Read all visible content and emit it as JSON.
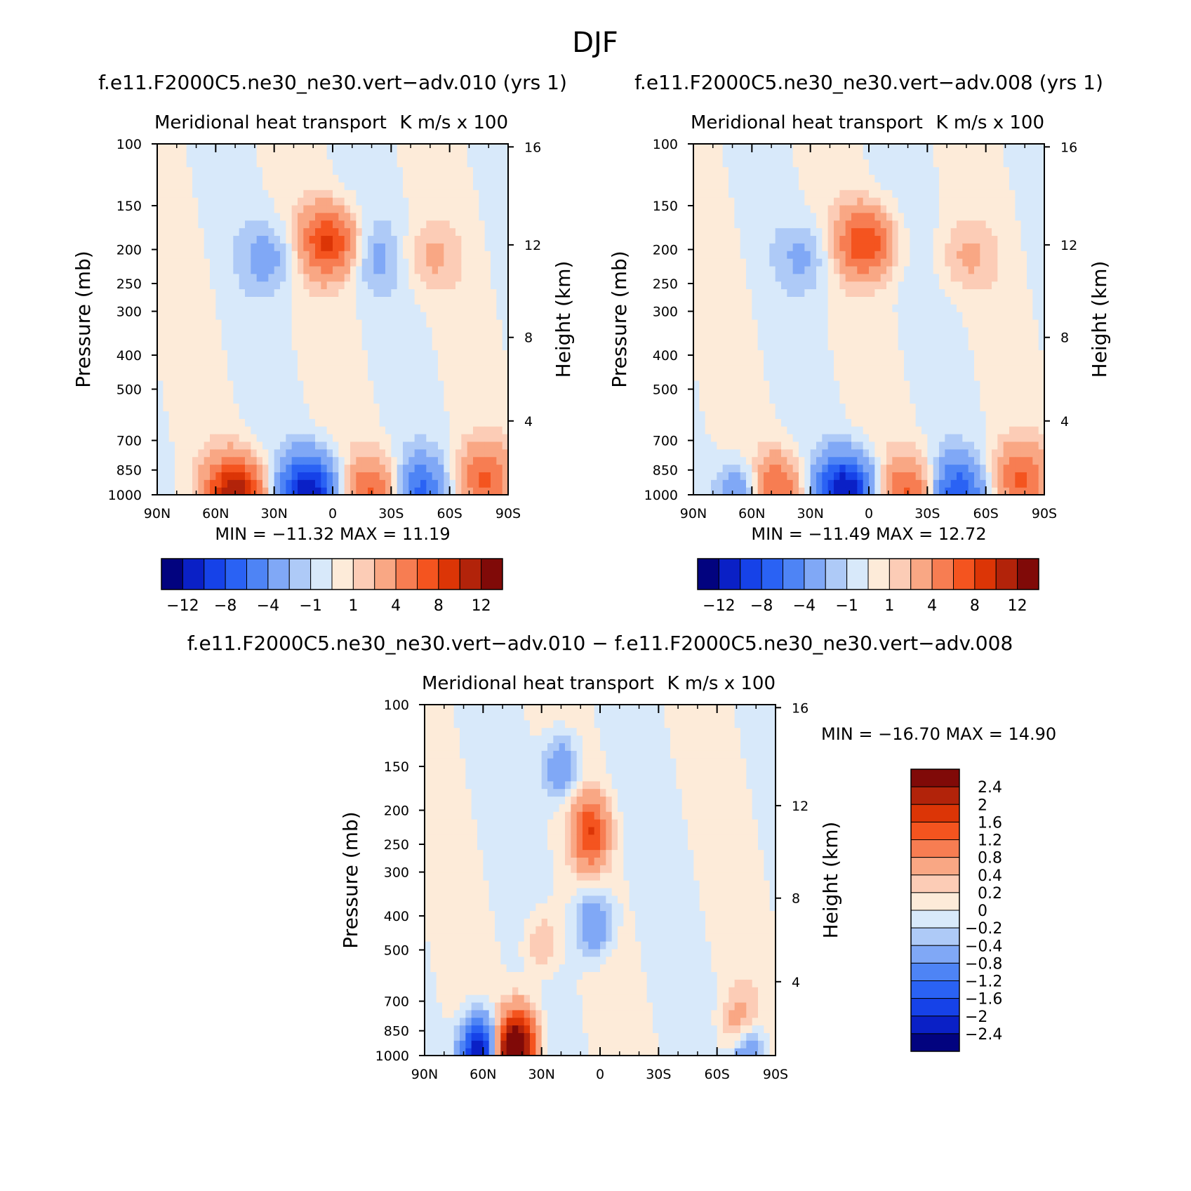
{
  "figure": {
    "title": "DJF"
  },
  "palette": {
    "diverging": [
      "#02037f",
      "#0a20c6",
      "#1642e8",
      "#2a62f4",
      "#4e84f5",
      "#80a8f6",
      "#aecaf7",
      "#d8e9fa",
      "#fdebd9",
      "#fcccb6",
      "#f9a784",
      "#f77d52",
      "#f4541f",
      "#dc3506",
      "#b2230a",
      "#800a08"
    ],
    "axis": "#000000",
    "missing": "#ffffff"
  },
  "chart_data": [
    {
      "type": "heatmap",
      "panel": "control",
      "title": "f.e11.F2000C5.ne30_ne30.vert−adv.010 (yrs 1)",
      "subtitle_left": "Meridional heat transport",
      "subtitle_right": "K m/s x 100",
      "ylabel": "Pressure (mb)",
      "ylabel_right": "Height (km)",
      "yscale": "log",
      "ylim": [
        1000,
        100
      ],
      "xlim": [
        90,
        -90
      ],
      "xticks": [
        "90N",
        "60N",
        "30N",
        "0",
        "30S",
        "60S",
        "90S"
      ],
      "yticks": [
        "100",
        "150",
        "200",
        "250",
        "300",
        "400",
        "500",
        "700",
        "850",
        "1000"
      ],
      "yticks_right": [
        "16",
        "12",
        "8",
        "4"
      ],
      "stats_text": "MIN =  −11.32    MAX =    11.19",
      "min": -11.32,
      "max": 11.19,
      "colorbar": {
        "orientation": "horizontal",
        "levels": [
          -14,
          -12,
          -10,
          -8,
          -6,
          -4,
          -2,
          -1,
          0,
          1,
          2,
          4,
          6,
          8,
          10,
          12,
          14
        ],
        "labels": [
          "−12",
          "−8",
          "−4",
          "−1",
          "1",
          "4",
          "8",
          "12"
        ]
      },
      "features": [
        {
          "lat": 2,
          "p": 190,
          "value": 8.2,
          "desc": "upper-level positive core"
        },
        {
          "lat": -50,
          "p": 210,
          "value": 2.0
        },
        {
          "lat": 33,
          "p": 210,
          "value": -2.5
        },
        {
          "lat": -22,
          "p": 210,
          "value": -2.0
        },
        {
          "lat": 12,
          "p": 960,
          "value": -11.3
        },
        {
          "lat": 50,
          "p": 975,
          "value": 11.2
        },
        {
          "lat": -20,
          "p": 975,
          "value": 6.0
        },
        {
          "lat": -45,
          "p": 975,
          "value": -6.0
        },
        {
          "lat": -78,
          "p": 900,
          "value": 6.0
        }
      ]
    },
    {
      "type": "heatmap",
      "panel": "experiment",
      "title": "f.e11.F2000C5.ne30_ne30.vert−adv.008 (yrs 1)",
      "subtitle_left": "Meridional heat transport",
      "subtitle_right": "K m/s x 100",
      "ylabel": "Pressure (mb)",
      "ylabel_right": "Height (km)",
      "yscale": "log",
      "ylim": [
        1000,
        100
      ],
      "xlim": [
        90,
        -90
      ],
      "xticks": [
        "90N",
        "60N",
        "30N",
        "0",
        "30S",
        "60S",
        "90S"
      ],
      "yticks": [
        "100",
        "150",
        "200",
        "250",
        "300",
        "400",
        "500",
        "700",
        "850",
        "1000"
      ],
      "yticks_right": [
        "16",
        "12",
        "8",
        "4"
      ],
      "stats_text": "MIN =  −11.49    MAX =    12.72",
      "min": -11.49,
      "max": 12.72,
      "colorbar": {
        "orientation": "horizontal",
        "levels": [
          -14,
          -12,
          -10,
          -8,
          -6,
          -4,
          -2,
          -1,
          0,
          1,
          2,
          4,
          6,
          8,
          10,
          12,
          14
        ],
        "labels": [
          "−12",
          "−8",
          "−4",
          "−1",
          "1",
          "4",
          "8",
          "12"
        ]
      },
      "features": [
        {
          "lat": 2,
          "p": 190,
          "value": 7.5
        },
        {
          "lat": -50,
          "p": 210,
          "value": 2.0
        },
        {
          "lat": 33,
          "p": 210,
          "value": -2.0
        },
        {
          "lat": 12,
          "p": 960,
          "value": -11.5
        },
        {
          "lat": 50,
          "p": 960,
          "value": 8.0
        },
        {
          "lat": -20,
          "p": 975,
          "value": 6.0
        },
        {
          "lat": -45,
          "p": 975,
          "value": -7.0
        },
        {
          "lat": 62,
          "p": 985,
          "value": -6.0
        },
        {
          "lat": -78,
          "p": 900,
          "value": 6.0
        }
      ]
    },
    {
      "type": "heatmap",
      "panel": "difference",
      "title": "f.e11.F2000C5.ne30_ne30.vert−adv.010 − f.e11.F2000C5.ne30_ne30.vert−adv.008",
      "subtitle_left": "Meridional heat transport",
      "subtitle_right": "K m/s x 100",
      "ylabel": "Pressure (mb)",
      "ylabel_right": "Height (km)",
      "yscale": "log",
      "ylim": [
        1000,
        100
      ],
      "xlim": [
        90,
        -90
      ],
      "xticks": [
        "90N",
        "60N",
        "30N",
        "0",
        "30S",
        "60S",
        "90S"
      ],
      "yticks": [
        "100",
        "150",
        "200",
        "250",
        "300",
        "400",
        "500",
        "700",
        "850",
        "1000"
      ],
      "yticks_right": [
        "16",
        "12",
        "8",
        "4"
      ],
      "stats_text": "MIN =  −16.70    MAX =    14.90",
      "min": -16.7,
      "max": 14.9,
      "colorbar": {
        "orientation": "vertical",
        "levels": [
          -2.8,
          -2.4,
          -2,
          -1.6,
          -1.2,
          -0.8,
          -0.4,
          -0.2,
          0,
          0.2,
          0.4,
          0.8,
          1.2,
          1.6,
          2,
          2.4,
          2.8
        ],
        "labels": [
          "2.4",
          "2",
          "1.6",
          "1.2",
          "0.8",
          "0.4",
          "0.2",
          "0",
          "−0.2",
          "−0.4",
          "−0.8",
          "−1.2",
          "−1.6",
          "−2",
          "−2.4"
        ]
      },
      "features": [
        {
          "lat": 5,
          "p": 230,
          "value": 1.5,
          "desc": "upper-level positive"
        },
        {
          "lat": 20,
          "p": 150,
          "value": -0.8
        },
        {
          "lat": 3,
          "p": 420,
          "value": -0.9
        },
        {
          "lat": 30,
          "p": 480,
          "value": 0.5
        },
        {
          "lat": 62,
          "p": 970,
          "value": -2.6
        },
        {
          "lat": 45,
          "p": 980,
          "value": 2.6
        },
        {
          "lat": 40,
          "p": 880,
          "value": 1.2
        },
        {
          "lat": -72,
          "p": 860,
          "value": 0.9
        },
        {
          "lat": -75,
          "p": 990,
          "value": -1.4
        }
      ]
    }
  ]
}
